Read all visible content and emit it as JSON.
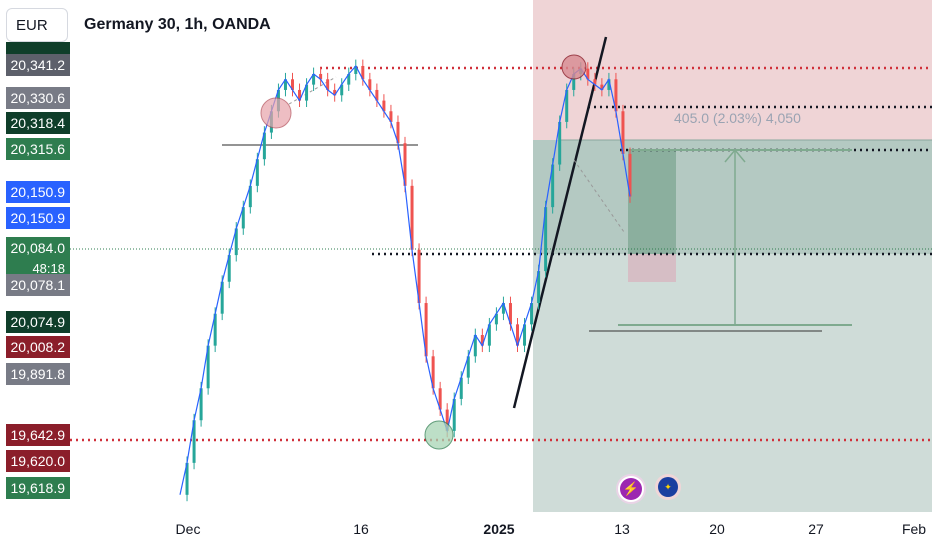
{
  "header": {
    "currency": "EUR",
    "title": "Germany 30, 1h, OANDA"
  },
  "price_labels": [
    {
      "text": "20,341.2",
      "price": 20341.2,
      "color": "#5d606b"
    },
    {
      "text": "20,330.6",
      "price": 20330.6,
      "color": "#787b86"
    },
    {
      "text": "20,318.4",
      "price": 20318.4,
      "color": "#0f3e2a"
    },
    {
      "text": "20,315.6",
      "price": 20315.6,
      "color": "#2e7d4f"
    },
    {
      "text": "20,150.9",
      "price": 20150.9,
      "color": "#2962ff"
    },
    {
      "text": "20,150.9",
      "price": 20150.9,
      "color": "#2962ff"
    },
    {
      "text": "20,084.0",
      "price": 20084.0,
      "color": "#2e7d4f"
    },
    {
      "text": "20,078.1",
      "price": 20078.1,
      "color": "#787b86"
    },
    {
      "text": "20,074.9",
      "price": 20074.9,
      "color": "#0f3e2a"
    },
    {
      "text": "20,008.2",
      "price": 20008.2,
      "color": "#8b1e2a"
    },
    {
      "text": "19,891.8",
      "price": 19891.8,
      "color": "#787b86"
    },
    {
      "text": "19,642.9",
      "price": 19642.9,
      "color": "#8b1e2a"
    },
    {
      "text": "19,620.0",
      "price": 19620.0,
      "color": "#8b1e2a"
    },
    {
      "text": "19,618.9",
      "price": 19618.9,
      "color": "#2e7d4f"
    }
  ],
  "countdown": "48:18",
  "x_axis": {
    "ticks": [
      {
        "label": "Dec",
        "bold": false
      },
      {
        "label": "16",
        "bold": false
      },
      {
        "label": "2025",
        "bold": true
      },
      {
        "label": "13",
        "bold": false
      },
      {
        "label": "20",
        "bold": false
      },
      {
        "label": "27",
        "bold": false
      },
      {
        "label": "Feb",
        "bold": false
      }
    ]
  },
  "measure": {
    "label": "405.0 (2.03%) 4,050",
    "points": 405.0,
    "percent": 2.03,
    "ticks": 4050
  },
  "icons": [
    "lightning-icon",
    "eu-flag-icon"
  ],
  "chart_data": {
    "type": "line",
    "title": "Germany 30, 1h, OANDA",
    "currency": "EUR",
    "x_ticks": [
      "Dec",
      "16",
      "2025",
      "13",
      "20",
      "27",
      "Feb"
    ],
    "series": [
      {
        "values": [
          19540,
          19600,
          19680,
          19740,
          19820,
          19880,
          19940,
          19990,
          20040,
          20080,
          20120,
          20170,
          20220,
          20260,
          20300,
          20320,
          20300,
          20280,
          20310,
          20330,
          20320,
          20300,
          20290,
          20310,
          20330,
          20345,
          20320,
          20300,
          20280,
          20260,
          20240,
          20200,
          20120,
          20000,
          19900,
          19800,
          19740,
          19700,
          19660,
          19720,
          19760,
          19800,
          19840,
          19820,
          19860,
          19880,
          19900,
          19860,
          19820,
          19860,
          19900,
          19960,
          20080,
          20160,
          20240,
          20300,
          20330,
          20340,
          20320,
          20310,
          20300,
          20320,
          20260,
          20180,
          20100
        ]
      }
    ],
    "annotations": {
      "levels": [
        20341.2,
        20318.4,
        20315.6,
        20150.9,
        20084.0,
        19642.9
      ],
      "reward_box_top": 20318.4,
      "entry": 20150.9,
      "stop_box_top": 20084.0
    },
    "colors": {
      "up": "#26a69a",
      "down": "#ef5350",
      "line": "#2962ff",
      "reward_fill": "#b7cfc6",
      "risk_fill": "#f2d3d5"
    }
  }
}
